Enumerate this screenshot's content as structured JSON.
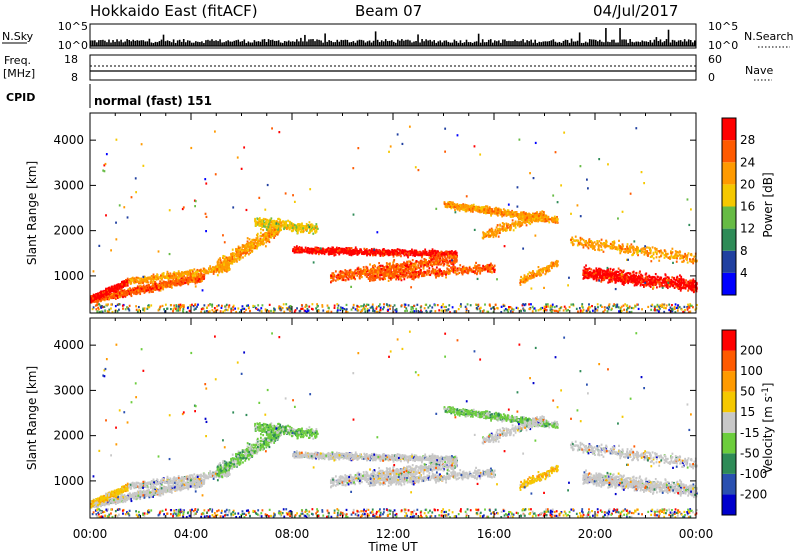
{
  "header": {
    "station": "Hokkaido East (fitACF)",
    "beam": "Beam 07",
    "date": "04/Jul/2017"
  },
  "strip_labels": {
    "nsky": "N.Sky",
    "nsearch": "N.Search",
    "freq_line1": "Freq.",
    "freq_line2": "[MHz]",
    "nave": "Nave",
    "cpid": "CPID",
    "cpid_value": "normal (fast) 151"
  },
  "strip_ticks": {
    "noise_left": [
      "10^5",
      "10^0"
    ],
    "noise_right": [
      "10^5",
      "10^0"
    ],
    "freq_left": [
      "18",
      "8"
    ],
    "freq_right": [
      "60",
      "0"
    ]
  },
  "chart_data": [
    {
      "type": "heatmap",
      "panel": "power",
      "ylabel": "Slant Range [km]",
      "ylim": [
        180,
        4600
      ],
      "yticks": [
        "1000",
        "2000",
        "3000",
        "4000"
      ],
      "colorbar": {
        "label": "Power [dB]",
        "ticks": [
          "4",
          "8",
          "12",
          "16",
          "20",
          "24",
          "28"
        ],
        "colors": [
          "#0000ff",
          "#2040a0",
          "#2e8b57",
          "#66bb44",
          "#f5c800",
          "#ff9a00",
          "#ff5a00",
          "#ff0000"
        ]
      }
    },
    {
      "type": "heatmap",
      "panel": "velocity",
      "ylabel": "Slant Range [km]",
      "ylim": [
        180,
        4600
      ],
      "yticks": [
        "1000",
        "2000",
        "3000",
        "4000"
      ],
      "colorbar": {
        "label": "Velocity [m s^-1]",
        "ticks": [
          "200",
          "100",
          "50",
          "15",
          "-15",
          "-50",
          "-100",
          "-200"
        ],
        "colors": [
          "#0000cc",
          "#2a50b0",
          "#2e8b57",
          "#6ccd3c",
          "#c8c8c8",
          "#f5c800",
          "#ff9a00",
          "#ff5a00",
          "#ff0000"
        ]
      }
    }
  ],
  "x_axis": {
    "ticks": [
      "00:00",
      "04:00",
      "08:00",
      "12:00",
      "16:00",
      "20:00",
      "00:00"
    ],
    "label": "Time UT"
  }
}
